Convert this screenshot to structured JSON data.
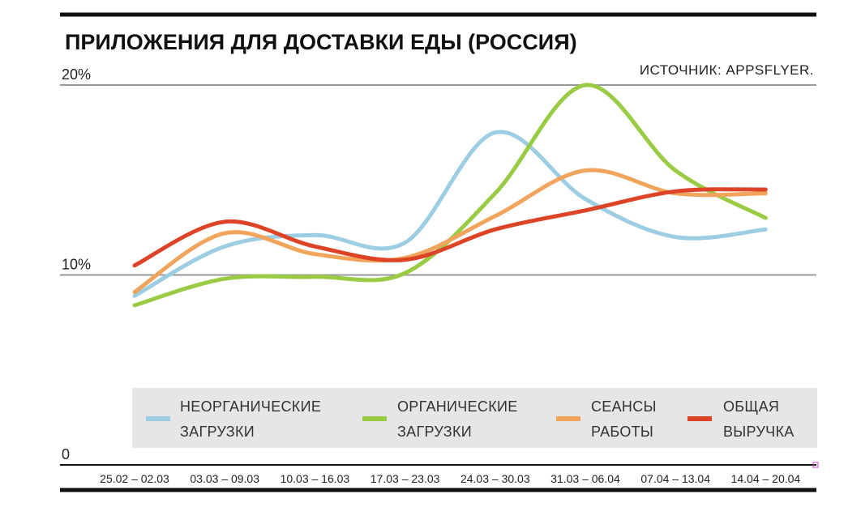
{
  "chart_data": {
    "type": "line",
    "title": "ПРИЛОЖЕНИЯ ДЛЯ ДОСТАВКИ ЕДЫ (РОССИЯ)",
    "source": "ИСТОЧНИК: APPSFLYER.",
    "categories": [
      "25.02 – 02.03",
      "03.03 – 09.03",
      "10.03 – 16.03",
      "17.03 – 23.03",
      "24.03 – 30.03",
      "31.03 – 06.04",
      "07.04 – 13.04",
      "14.04 – 20.04"
    ],
    "yticks": [
      {
        "label": "20%",
        "value": 20
      },
      {
        "label": "10%",
        "value": 10
      },
      {
        "label": "0",
        "value": 0
      }
    ],
    "ylim": [
      0,
      20
    ],
    "series": [
      {
        "name": "НЕОРГАНИЧЕСКИЕ ЗАГРУЗКИ",
        "legend_lines": [
          "НЕОРГАНИЧЕСКИЕ",
          "ЗАГРУЗКИ"
        ],
        "color": "#9ccde3",
        "values": [
          8.9,
          11.5,
          12.1,
          11.7,
          17.5,
          14.0,
          12.0,
          12.4
        ]
      },
      {
        "name": "ОРГАНИЧЕСКИЕ ЗАГРУЗКИ",
        "legend_lines": [
          "ОРГАНИЧЕСКИЕ",
          "ЗАГРУЗКИ"
        ],
        "color": "#99cc44",
        "values": [
          8.4,
          9.8,
          9.9,
          10.1,
          14.3,
          20.0,
          15.5,
          13.0
        ]
      },
      {
        "name": "СЕАНСЫ РАБОТЫ",
        "legend_lines": [
          "СЕАНСЫ",
          "РАБОТЫ"
        ],
        "color": "#f0a45c",
        "values": [
          9.1,
          12.2,
          11.1,
          10.9,
          13.1,
          15.5,
          14.3,
          14.3
        ]
      },
      {
        "name": "ОБЩАЯ ВЫРУЧКА",
        "legend_lines": [
          "ОБЩАЯ",
          "ВЫРУЧКА"
        ],
        "color": "#dd4427",
        "values": [
          10.5,
          12.8,
          11.5,
          10.8,
          12.4,
          13.4,
          14.4,
          14.5
        ]
      }
    ],
    "grid": true,
    "legend_position": "bottom"
  }
}
